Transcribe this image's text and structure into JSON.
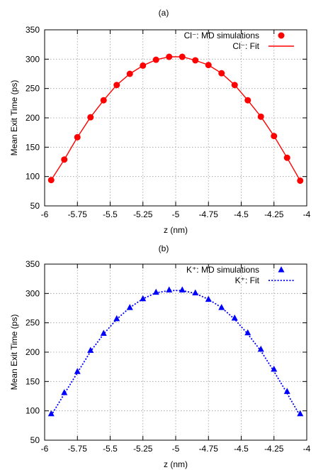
{
  "chart_data": [
    {
      "type": "scatter",
      "title": "(a)",
      "xlabel": "z (nm)",
      "ylabel": "Mean Exit Time (ps)",
      "xlim": [
        -6,
        -4
      ],
      "ylim": [
        50,
        350
      ],
      "xticks": [
        -6,
        -5.75,
        -5.5,
        -5.25,
        -5,
        -4.75,
        -4.5,
        -4.25,
        -4
      ],
      "yticks": [
        50,
        100,
        150,
        200,
        250,
        300,
        350
      ],
      "xtick_labels": [
        "-6",
        "-5.75",
        "-5.5",
        "-5.25",
        "-5",
        "-4.75",
        "-4.5",
        "-4.25",
        "-4"
      ],
      "ytick_labels": [
        "50",
        "100",
        "150",
        "200",
        "250",
        "300",
        "350"
      ],
      "grid": true,
      "legend_position": "top-right",
      "series": [
        {
          "name": "Cl⁻: MD simulations",
          "kind": "points",
          "marker": "circle",
          "color": "#ff0000",
          "x": [
            -5.95,
            -5.85,
            -5.75,
            -5.65,
            -5.55,
            -5.45,
            -5.35,
            -5.25,
            -5.15,
            -5.05,
            -4.95,
            -4.85,
            -4.75,
            -4.65,
            -4.55,
            -4.45,
            -4.35,
            -4.25,
            -4.15,
            -4.05
          ],
          "y": [
            94,
            129,
            167,
            201,
            230,
            256,
            275,
            289,
            299,
            304,
            304,
            298,
            290,
            276,
            256,
            230,
            202,
            169,
            132,
            93
          ]
        },
        {
          "name": "Cl⁻: Fit",
          "kind": "line",
          "style": "solid",
          "color": "#ff0000",
          "x": [
            -5.95,
            -5.85,
            -5.75,
            -5.65,
            -5.55,
            -5.45,
            -5.35,
            -5.25,
            -5.15,
            -5.05,
            -4.95,
            -4.85,
            -4.75,
            -4.65,
            -4.55,
            -4.45,
            -4.35,
            -4.25,
            -4.15,
            -4.05
          ],
          "y": [
            94,
            129,
            167,
            201,
            230,
            256,
            275,
            289,
            299,
            304,
            304,
            298,
            290,
            276,
            256,
            230,
            202,
            169,
            132,
            93
          ]
        }
      ]
    },
    {
      "type": "scatter",
      "title": "(b)",
      "xlabel": "z (nm)",
      "ylabel": "Mean Exit Time (ps)",
      "xlim": [
        -6,
        -4
      ],
      "ylim": [
        50,
        350
      ],
      "xticks": [
        -6,
        -5.75,
        -5.5,
        -5.25,
        -5,
        -4.75,
        -4.5,
        -4.25,
        -4
      ],
      "yticks": [
        50,
        100,
        150,
        200,
        250,
        300,
        350
      ],
      "xtick_labels": [
        "-6",
        "-5.75",
        "-5.5",
        "-5.25",
        "-5",
        "-4.75",
        "-4.5",
        "-4.25",
        "-4"
      ],
      "ytick_labels": [
        "50",
        "100",
        "150",
        "200",
        "250",
        "300",
        "350"
      ],
      "grid": true,
      "legend_position": "top-right",
      "series": [
        {
          "name": "K⁺: MD simulations",
          "kind": "points",
          "marker": "triangle",
          "color": "#0000ff",
          "x": [
            -5.95,
            -5.85,
            -5.75,
            -5.65,
            -5.55,
            -5.45,
            -5.35,
            -5.25,
            -5.15,
            -5.05,
            -4.95,
            -4.85,
            -4.75,
            -4.65,
            -4.55,
            -4.45,
            -4.35,
            -4.25,
            -4.15,
            -4.05
          ],
          "y": [
            95,
            131,
            167,
            203,
            232,
            257,
            276,
            291,
            302,
            306,
            306,
            301,
            290,
            276,
            258,
            233,
            205,
            171,
            133,
            95
          ]
        },
        {
          "name": "K⁺: Fit",
          "kind": "line",
          "style": "dotted",
          "color": "#0000ff",
          "x": [
            -5.95,
            -5.85,
            -5.75,
            -5.65,
            -5.55,
            -5.45,
            -5.35,
            -5.25,
            -5.15,
            -5.05,
            -4.95,
            -4.85,
            -4.75,
            -4.65,
            -4.55,
            -4.45,
            -4.35,
            -4.25,
            -4.15,
            -4.05
          ],
          "y": [
            92,
            129,
            165,
            201,
            231,
            256,
            276,
            291,
            301,
            305,
            305,
            300,
            290,
            276,
            256,
            231,
            202,
            167,
            130,
            91
          ]
        }
      ]
    }
  ]
}
